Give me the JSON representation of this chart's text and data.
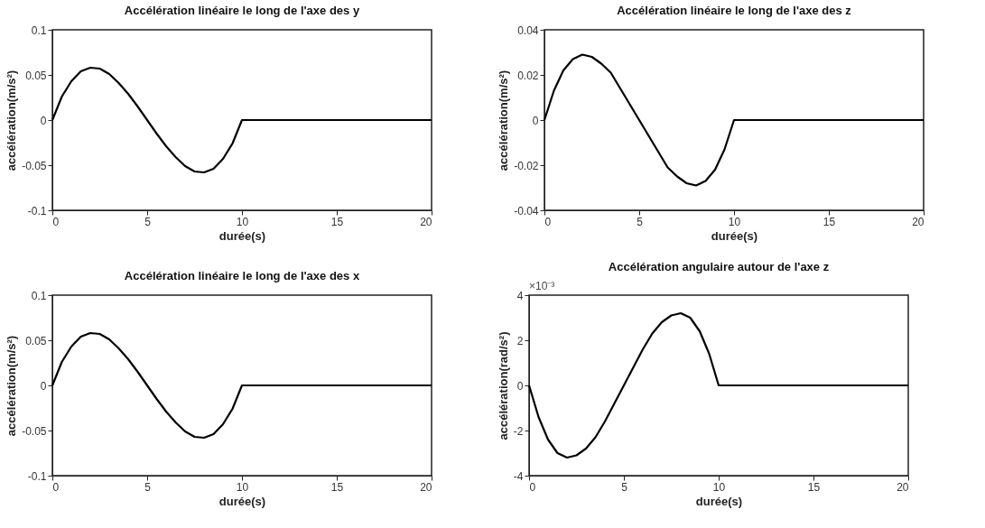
{
  "chart_data": [
    {
      "type": "line",
      "title": "Accélération linéaire le long de l'axe des y",
      "xlabel": "durée(s)",
      "ylabel": "accélération(m/s²)",
      "x": [
        0,
        0.5,
        1,
        1.5,
        2,
        2.5,
        3,
        3.5,
        4,
        4.5,
        5,
        5.5,
        6,
        6.5,
        7,
        7.5,
        8,
        8.5,
        9,
        9.5,
        10,
        20
      ],
      "series": [
        {
          "color": "#000000",
          "values": [
            0,
            0.026,
            0.043,
            0.054,
            0.058,
            0.057,
            0.051,
            0.041,
            0.029,
            0.015,
            0,
            -0.015,
            -0.029,
            -0.041,
            -0.051,
            -0.057,
            -0.058,
            -0.054,
            -0.043,
            -0.026,
            0,
            0
          ]
        }
      ],
      "xlim": [
        0,
        20
      ],
      "xticks": [
        0,
        5,
        10,
        15,
        20
      ],
      "ylim": [
        -0.1,
        0.1
      ],
      "yticks": [
        -0.1,
        -0.05,
        0,
        0.05,
        0.1
      ],
      "grid": false,
      "line_style": "solid"
    },
    {
      "type": "line",
      "title": "Accélération linéaire le long de l'axe des z",
      "xlabel": "durée(s)",
      "ylabel": "accélération(m/s²)",
      "x": [
        0,
        0.5,
        1,
        1.5,
        2,
        2.5,
        3,
        3.5,
        4,
        4.5,
        5,
        5.5,
        6,
        6.5,
        7,
        7.5,
        8,
        8.5,
        9,
        9.5,
        10,
        20
      ],
      "series": [
        {
          "color": "#000000",
          "values": [
            0,
            0.013,
            0.022,
            0.027,
            0.029,
            0.028,
            0.025,
            0.021,
            0.014,
            0.007,
            0,
            -0.007,
            -0.014,
            -0.021,
            -0.025,
            -0.028,
            -0.029,
            -0.027,
            -0.022,
            -0.013,
            0,
            0
          ]
        }
      ],
      "xlim": [
        0,
        20
      ],
      "xticks": [
        0,
        5,
        10,
        15,
        20
      ],
      "ylim": [
        -0.04,
        0.04
      ],
      "yticks": [
        -0.04,
        -0.02,
        0,
        0.02,
        0.04
      ],
      "grid": false,
      "line_style": "solid"
    },
    {
      "type": "line",
      "title": "Accélération linéaire le long de l'axe des x",
      "xlabel": "durée(s)",
      "ylabel": "accélération(m/s²)",
      "x": [
        0,
        0.5,
        1,
        1.5,
        2,
        2.5,
        3,
        3.5,
        4,
        4.5,
        5,
        5.5,
        6,
        6.5,
        7,
        7.5,
        8,
        8.5,
        9,
        9.5,
        10,
        20
      ],
      "series": [
        {
          "color": "#000000",
          "values": [
            0,
            0.026,
            0.043,
            0.054,
            0.058,
            0.057,
            0.051,
            0.041,
            0.029,
            0.015,
            0,
            -0.015,
            -0.029,
            -0.041,
            -0.051,
            -0.057,
            -0.058,
            -0.054,
            -0.043,
            -0.026,
            0,
            0
          ]
        }
      ],
      "xlim": [
        0,
        20
      ],
      "xticks": [
        0,
        5,
        10,
        15,
        20
      ],
      "ylim": [
        -0.1,
        0.1
      ],
      "yticks": [
        -0.1,
        -0.05,
        0,
        0.05,
        0.1
      ],
      "grid": false,
      "line_style": "solid"
    },
    {
      "type": "line",
      "title": "Accélération angulaire autour de l'axe z",
      "xlabel": "durée(s)",
      "ylabel": "accélération(rad/s²)",
      "annotations": [
        "×10⁻³"
      ],
      "x": [
        0,
        0.5,
        1,
        1.5,
        2,
        2.5,
        3,
        3.5,
        4,
        4.5,
        5,
        5.5,
        6,
        6.5,
        7,
        7.5,
        8,
        8.5,
        9,
        9.5,
        10,
        20
      ],
      "series": [
        {
          "color": "#000000",
          "values": [
            0,
            -1.4,
            -2.4,
            -3.0,
            -3.2,
            -3.1,
            -2.8,
            -2.3,
            -1.6,
            -0.8,
            0,
            0.8,
            1.6,
            2.3,
            2.8,
            3.1,
            3.2,
            3.0,
            2.4,
            1.4,
            0,
            0
          ]
        }
      ],
      "xlim": [
        0,
        20
      ],
      "xticks": [
        0,
        5,
        10,
        15,
        20
      ],
      "ylim": [
        -4,
        4
      ],
      "yticks": [
        -4,
        -2,
        0,
        2,
        4
      ],
      "grid": false,
      "line_style": "solid"
    }
  ]
}
